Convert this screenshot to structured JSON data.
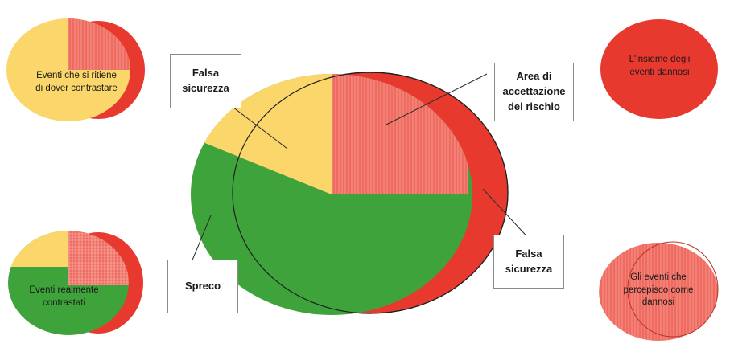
{
  "colors": {
    "red": "#e8392f",
    "hatch": "#ef6a5f",
    "yellow": "#fad66b",
    "green": "#3ea33a",
    "outline": "#1f1f1f",
    "label_border": "#8a8a8a"
  },
  "labels": {
    "false_security_top": "Falsa\nsicurezza",
    "risk_acceptance": "Area di\naccettazione\ndel rischio",
    "false_security_bottom": "Falsa\nsicurezza",
    "waste": "Spreco"
  },
  "legend": {
    "events_to_counter": "Eventi che si ritiene\ndi dover contrastare",
    "events_countered": "Eventi realmente\ncontrastati",
    "harmful_events": "L'insieme degli\neventi dannosi",
    "perceived_harmful": "Gli eventi che\npercepisco come\ndannosi"
  }
}
